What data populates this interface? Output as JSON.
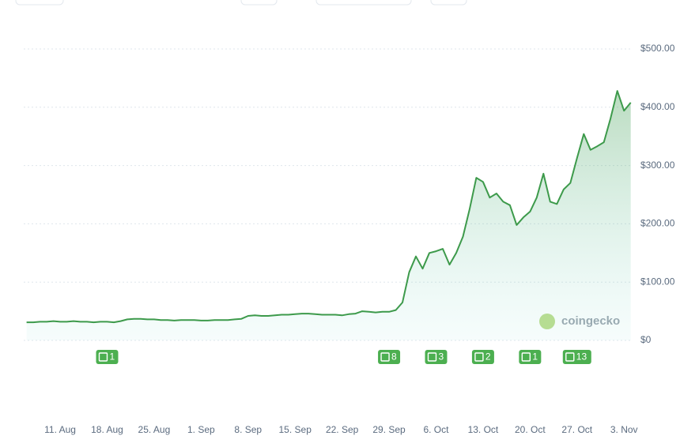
{
  "chart_data": {
    "type": "line",
    "x": [
      "6. Aug",
      "7. Aug",
      "8. Aug",
      "9. Aug",
      "10. Aug",
      "11. Aug",
      "12. Aug",
      "13. Aug",
      "14. Aug",
      "15. Aug",
      "16. Aug",
      "17. Aug",
      "18. Aug",
      "19. Aug",
      "20. Aug",
      "21. Aug",
      "22. Aug",
      "23. Aug",
      "24. Aug",
      "25. Aug",
      "26. Aug",
      "27. Aug",
      "28. Aug",
      "29. Aug",
      "30. Aug",
      "31. Aug",
      "1. Sep",
      "2. Sep",
      "3. Sep",
      "4. Sep",
      "5. Sep",
      "6. Sep",
      "7. Sep",
      "8. Sep",
      "9. Sep",
      "10. Sep",
      "11. Sep",
      "12. Sep",
      "13. Sep",
      "14. Sep",
      "15. Sep",
      "16. Sep",
      "17. Sep",
      "18. Sep",
      "19. Sep",
      "20. Sep",
      "21. Sep",
      "22. Sep",
      "23. Sep",
      "24. Sep",
      "25. Sep",
      "26. Sep",
      "27. Sep",
      "28. Sep",
      "29. Sep",
      "30. Sep",
      "1. Oct",
      "2. Oct",
      "3. Oct",
      "4. Oct",
      "5. Oct",
      "6. Oct",
      "7. Oct",
      "8. Oct",
      "9. Oct",
      "10. Oct",
      "11. Oct",
      "12. Oct",
      "13. Oct",
      "14. Oct",
      "15. Oct",
      "16. Oct",
      "17. Oct",
      "18. Oct",
      "19. Oct",
      "20. Oct",
      "21. Oct",
      "22. Oct",
      "23. Oct",
      "24. Oct",
      "25. Oct",
      "26. Oct",
      "27. Oct",
      "28. Oct",
      "29. Oct",
      "30. Oct",
      "31. Oct",
      "1. Nov",
      "2. Nov",
      "3. Nov",
      "4. Nov"
    ],
    "series": [
      {
        "color": "#3d9a4b",
        "values": [
          31,
          31,
          32,
          32,
          33,
          32,
          32,
          33,
          32,
          32,
          31,
          32,
          32,
          31,
          33,
          36,
          37,
          37,
          36,
          36,
          35,
          35,
          34,
          35,
          35,
          35,
          34,
          34,
          35,
          35,
          35,
          36,
          37,
          42,
          43,
          42,
          42,
          43,
          44,
          44,
          45,
          46,
          46,
          45,
          44,
          44,
          44,
          43,
          45,
          46,
          50,
          49,
          48,
          49,
          49,
          52,
          65,
          117,
          144,
          123,
          150,
          153,
          157,
          130,
          150,
          178,
          225,
          279,
          272,
          245,
          252,
          238,
          232,
          198,
          211,
          221,
          245,
          286,
          238,
          234,
          259,
          270,
          313,
          354,
          327,
          333,
          340,
          381,
          428,
          394,
          408
        ]
      }
    ],
    "ylim": [
      0,
      500
    ],
    "yticks": [
      {
        "value": 0,
        "label": "$0"
      },
      {
        "value": 100,
        "label": "$100.00"
      },
      {
        "value": 200,
        "label": "$200.00"
      },
      {
        "value": 300,
        "label": "$300.00"
      },
      {
        "value": 400,
        "label": "$400.00"
      },
      {
        "value": 500,
        "label": "$500.00"
      }
    ],
    "xticks": [
      "11. Aug",
      "18. Aug",
      "25. Aug",
      "1. Sep",
      "8. Sep",
      "15. Sep",
      "22. Sep",
      "29. Sep",
      "6. Oct",
      "13. Oct",
      "20. Oct",
      "27. Oct",
      "3. Nov"
    ],
    "grid": true,
    "news": [
      {
        "x": "18. Aug",
        "count": 1
      },
      {
        "x": "29. Sep",
        "count": 8
      },
      {
        "x": "6. Oct",
        "count": 3
      },
      {
        "x": "13. Oct",
        "count": 2
      },
      {
        "x": "20. Oct",
        "count": 1
      },
      {
        "x": "27. Oct",
        "count": 13
      }
    ],
    "watermark": "coingecko"
  }
}
